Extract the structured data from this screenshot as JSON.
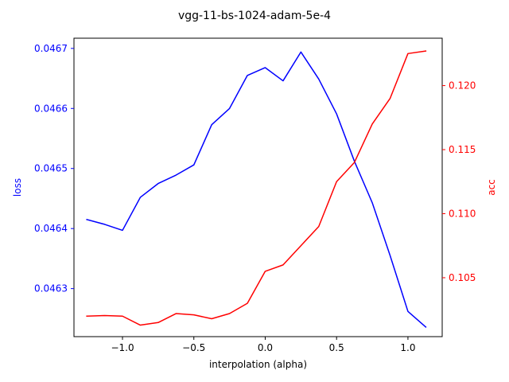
{
  "chart_data": {
    "type": "line",
    "title": "vgg-11-bs-1024-adam-5e-4",
    "xlabel": "interpolation (alpha)",
    "xlim": [
      -1.34,
      1.24
    ],
    "x_ticks": [
      -1.0,
      -0.5,
      0.0,
      0.5,
      1.0
    ],
    "x_tick_labels": [
      "−1.0",
      "−0.5",
      "0.0",
      "0.5",
      "1.0"
    ],
    "x": [
      -1.25,
      -1.125,
      -1.0,
      -0.875,
      -0.75,
      -0.625,
      -0.5,
      -0.375,
      -0.25,
      -0.125,
      0.0,
      0.125,
      0.25,
      0.375,
      0.5,
      0.625,
      0.75,
      0.875,
      1.0,
      1.125
    ],
    "left_axis": {
      "label": "loss",
      "color": "#0000ff",
      "ylim": [
        0.04622,
        0.046717
      ],
      "ticks": [
        0.0463,
        0.0464,
        0.0465,
        0.0466,
        0.0467
      ],
      "tick_labels": [
        "0.0463",
        "0.0464",
        "0.0465",
        "0.0466",
        "0.0467"
      ]
    },
    "right_axis": {
      "label": "acc",
      "color": "#ff0000",
      "ylim": [
        0.1004,
        0.1237
      ],
      "ticks": [
        0.105,
        0.11,
        0.115,
        0.12
      ],
      "tick_labels": [
        "0.105",
        "0.110",
        "0.115",
        "0.120"
      ]
    },
    "series": [
      {
        "axis": "left",
        "color": "#0000ff",
        "values": [
          0.046415,
          0.046407,
          0.046397,
          0.046452,
          0.046475,
          0.046489,
          0.046506,
          0.046573,
          0.0466,
          0.046655,
          0.046668,
          0.046646,
          0.046694,
          0.046649,
          0.046591,
          0.046512,
          0.046443,
          0.046355,
          0.046262,
          0.046236
        ]
      },
      {
        "axis": "right",
        "color": "#ff0000",
        "values": [
          0.102,
          0.10205,
          0.102,
          0.1013,
          0.1015,
          0.1022,
          0.1021,
          0.1018,
          0.1022,
          0.103,
          0.1055,
          0.106,
          0.1075,
          0.109,
          0.1125,
          0.114,
          0.117,
          0.119,
          0.1225,
          0.1227
        ]
      }
    ],
    "grid": false,
    "legend": "none"
  }
}
